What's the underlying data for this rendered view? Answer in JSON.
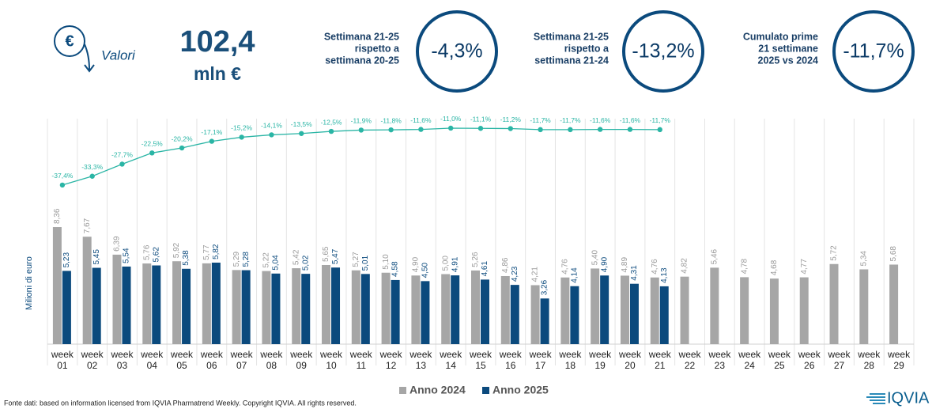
{
  "header": {
    "icon_label": "Valori",
    "total": "102,4",
    "unit": "mln €",
    "kpis": [
      {
        "lines": [
          "Settimana 21-25",
          "rispetto a",
          "settimana 20-25"
        ],
        "value": "-4,3%"
      },
      {
        "lines": [
          "Settimana 21-25",
          "rispetto a",
          "settimana 21-24"
        ],
        "value": "-13,2%"
      },
      {
        "lines": [
          "Cumulato prime",
          "21 settimane",
          "2025 vs 2024"
        ],
        "value": "-11,7%"
      }
    ]
  },
  "chart_data": {
    "type": "bar",
    "y_label": "Milioni di euro",
    "categories": [
      "week 01",
      "week 02",
      "week 03",
      "week 04",
      "week 05",
      "week 06",
      "week 07",
      "week 08",
      "week 09",
      "week 10",
      "week 11",
      "week 12",
      "week 13",
      "week 14",
      "week 15",
      "week 16",
      "week 17",
      "week 18",
      "week 19",
      "week 20",
      "week 21",
      "week 22",
      "week 23",
      "week 24",
      "week 25",
      "week 26",
      "week 27",
      "week 28",
      "week 29"
    ],
    "ylim": [
      0,
      10
    ],
    "y2lim": [
      -40,
      0
    ],
    "series": [
      {
        "name": "Anno 2024",
        "color": "#a6a6a6",
        "values": [
          8.36,
          7.67,
          6.39,
          5.76,
          5.92,
          5.77,
          5.29,
          5.22,
          5.42,
          5.65,
          5.27,
          5.1,
          4.9,
          5.0,
          5.26,
          4.86,
          4.21,
          4.76,
          5.4,
          4.89,
          4.76,
          4.82,
          5.46,
          4.78,
          4.68,
          4.77,
          5.72,
          5.34,
          5.68
        ],
        "value_labels": [
          "8,36",
          "7,67",
          "6,39",
          "5,76",
          "5,92",
          "5,77",
          "5,29",
          "5,22",
          "5,42",
          "5,65",
          "5,27",
          "5,10",
          "4,90",
          "5,00",
          "5,26",
          "4,86",
          "4,21",
          "4,76",
          "5,40",
          "4,89",
          "4,76",
          "4,82",
          "5,46",
          "4,78",
          "4,68",
          "4,77",
          "5,72",
          "5,34",
          "5,68"
        ]
      },
      {
        "name": "Anno 2025",
        "color": "#0b4a7d",
        "values": [
          5.23,
          5.45,
          5.54,
          5.62,
          5.38,
          5.82,
          5.28,
          5.04,
          5.02,
          5.47,
          5.01,
          4.58,
          4.5,
          4.91,
          4.61,
          4.23,
          3.26,
          4.14,
          4.9,
          4.31,
          4.13,
          null,
          null,
          null,
          null,
          null,
          null,
          null,
          null
        ],
        "value_labels": [
          "5,23",
          "5,45",
          "5,54",
          "5,62",
          "5,38",
          "5,82",
          "5,28",
          "5,04",
          "5,02",
          "5,47",
          "5,01",
          "4,58",
          "4,50",
          "4,91",
          "4,61",
          "4,23",
          "3,26",
          "4,14",
          "4,90",
          "4,31",
          "4,13",
          null,
          null,
          null,
          null,
          null,
          null,
          null,
          null
        ]
      },
      {
        "type": "line",
        "axis": "y2",
        "color": "#2ab5a5",
        "values": [
          -37.4,
          -33.3,
          -27.7,
          -22.5,
          -20.2,
          -17.1,
          -15.2,
          -14.1,
          -13.5,
          -12.5,
          -11.9,
          -11.8,
          -11.6,
          -11.0,
          -11.1,
          -11.2,
          -11.7,
          -11.7,
          -11.6,
          -11.6,
          -11.7,
          null,
          null,
          null,
          null,
          null,
          null,
          null,
          null
        ],
        "value_labels": [
          "-37,4%",
          "-33,3%",
          "-27,7%",
          "-22,5%",
          "-20,2%",
          "-17,1%",
          "-15,2%",
          "-14,1%",
          "-13,5%",
          "-12,5%",
          "-11,9%",
          "-11,8%",
          "-11,6%",
          "-11,0%",
          "-11,1%",
          "-11,2%",
          "-11,7%",
          "-11,7%",
          "-11,6%",
          "-11,6%",
          "-11,7%",
          null,
          null,
          null,
          null,
          null,
          null,
          null,
          null
        ]
      }
    ]
  },
  "footer": {
    "source": "Fonte dati: based on information licensed from IQVIA Pharmatrend Weekly. Copyright IQVIA. All rights reserved.",
    "logo": "IQVIA"
  }
}
